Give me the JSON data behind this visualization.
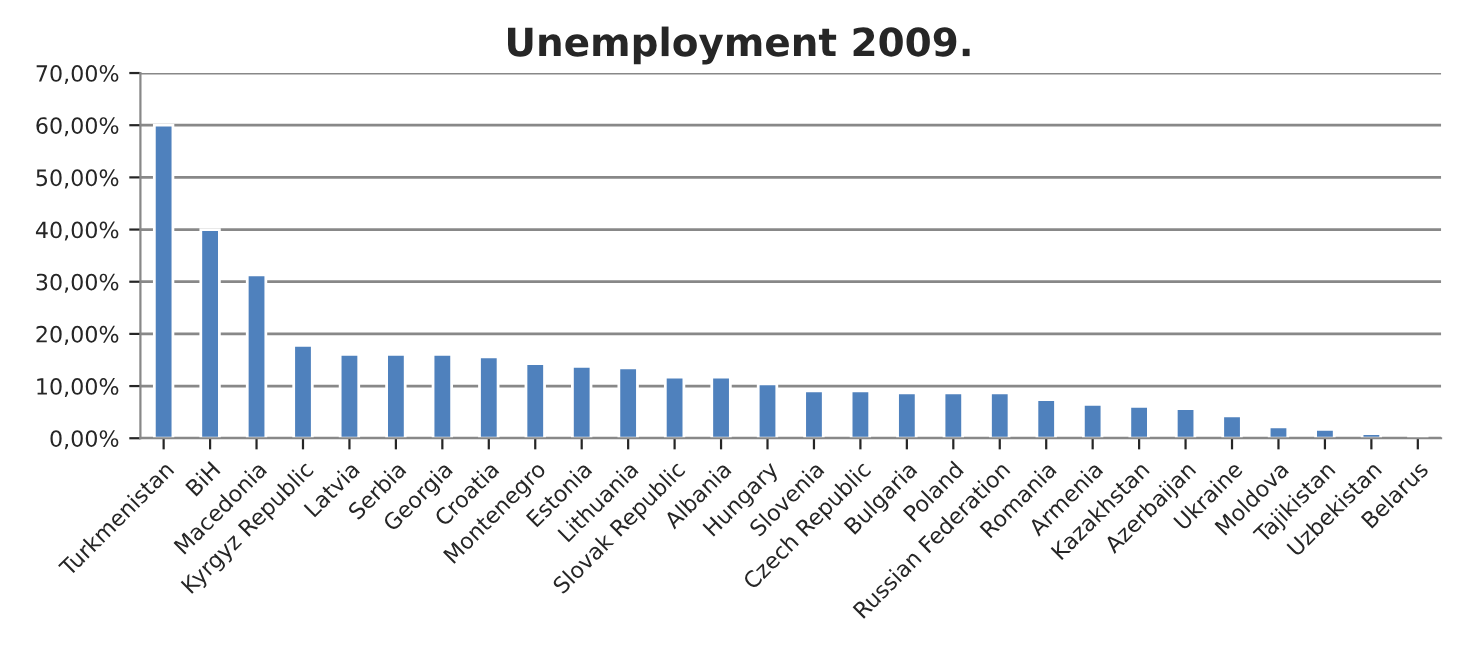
{
  "chart_data": {
    "type": "bar",
    "title": "Unemployment 2009.",
    "categories": [
      "Turkmenistan",
      "BiH",
      "Macedonia",
      "Kyrgyz Republic",
      "Latvia",
      "Serbia",
      "Georgia",
      "Croatia",
      "Montenegro",
      "Estonia",
      "Lithuania",
      "Slovak Republic",
      "Albania",
      "Hungary",
      "Slovenia",
      "Czech Republic",
      "Bulgaria",
      "Poland",
      "Russian Federation",
      "Romania",
      "Armenia",
      "Kazakhstan",
      "Azerbaijan",
      "Ukraine",
      "Moldova",
      "Tajikistan",
      "Uzbekistan",
      "Belarus"
    ],
    "values": [
      60,
      40,
      31.3,
      17.8,
      16.1,
      16.1,
      16.1,
      15.6,
      14.3,
      13.8,
      13.5,
      11.7,
      11.7,
      10.4,
      9.1,
      9.1,
      8.7,
      8.7,
      8.7,
      7.4,
      6.5,
      6.1,
      5.7,
      4.3,
      2.2,
      1.7,
      0.9,
      0.4
    ],
    "color": "#4f81bd",
    "ylim": [
      0,
      70
    ],
    "yticks": [
      {
        "value": 0,
        "label": "0,00%"
      },
      {
        "value": 10,
        "label": "10,00%"
      },
      {
        "value": 20,
        "label": "20,00%"
      },
      {
        "value": 30,
        "label": "30,00%"
      },
      {
        "value": 40,
        "label": "40,00%"
      },
      {
        "value": 50,
        "label": "50,00%"
      },
      {
        "value": 60,
        "label": "60,00%"
      },
      {
        "value": 70,
        "label": "70,00%"
      }
    ],
    "grid": "y",
    "legend": false
  }
}
